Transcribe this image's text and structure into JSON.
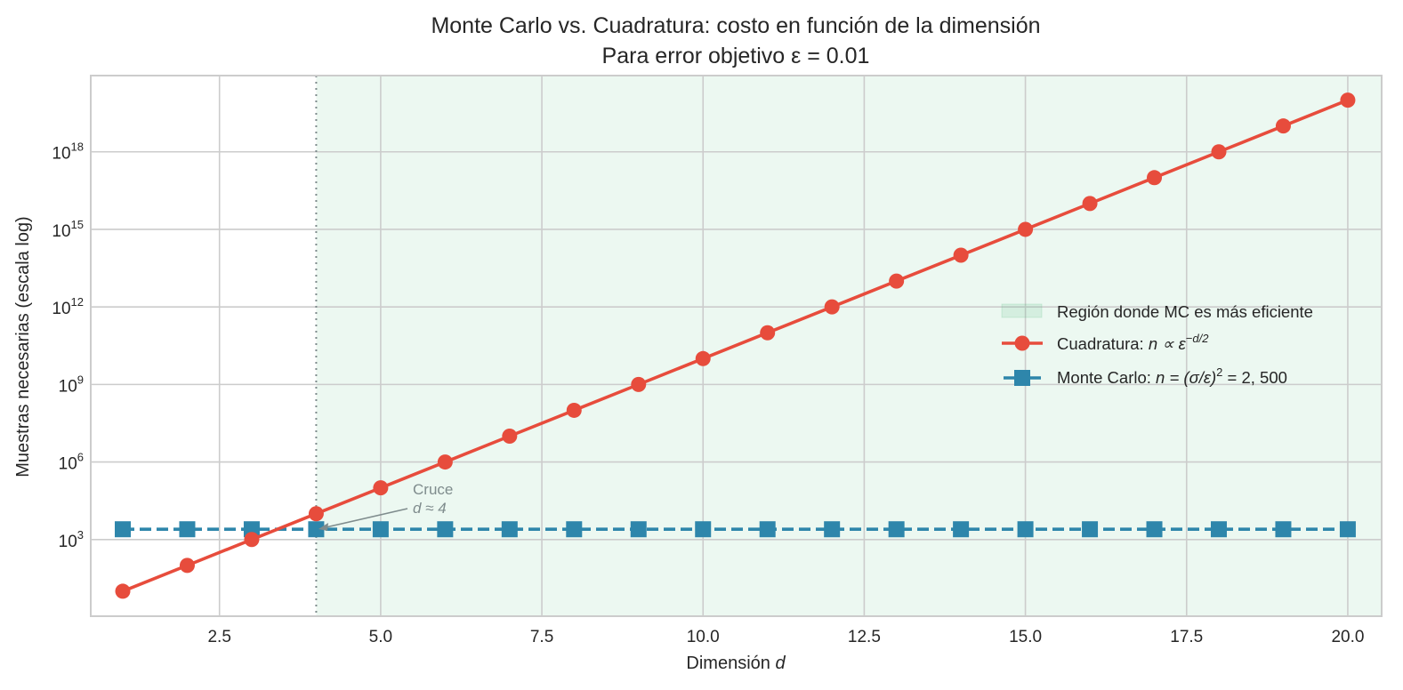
{
  "chart_data": {
    "type": "line",
    "title": "Monte Carlo vs. Cuadratura: costo en función de la dimensión",
    "subtitle": "Para error objetivo ε = 0.01",
    "xlabel": "Dimensión d",
    "ylabel": "Muestras necesarias (escala log)",
    "yscale": "log",
    "xlim": [
      0.5,
      20.5
    ],
    "ylim_log10": [
      0,
      20.95
    ],
    "grid": true,
    "x_ticks": [
      "2.5",
      "5.0",
      "7.5",
      "10.0",
      "12.5",
      "15.0",
      "17.5",
      "20.0"
    ],
    "x_tick_values": [
      2.5,
      5.0,
      7.5,
      10.0,
      12.5,
      15.0,
      17.5,
      20.0
    ],
    "y_ticks": [
      {
        "base": "10",
        "exp": "3",
        "log": 3
      },
      {
        "base": "10",
        "exp": "6",
        "log": 6
      },
      {
        "base": "10",
        "exp": "9",
        "log": 9
      },
      {
        "base": "10",
        "exp": "12",
        "log": 12
      },
      {
        "base": "10",
        "exp": "15",
        "log": 15
      },
      {
        "base": "10",
        "exp": "18",
        "log": 18
      }
    ],
    "x": [
      1,
      2,
      3,
      4,
      5,
      6,
      7,
      8,
      9,
      10,
      11,
      12,
      13,
      14,
      15,
      16,
      17,
      18,
      19,
      20
    ],
    "series": [
      {
        "name": "Cuadratura: n ∝ ε^(−d/2)",
        "color": "#e74c3c",
        "marker": "circle",
        "linestyle": "solid",
        "values": [
          10.0,
          100.0,
          1000.0,
          10000.0,
          100000.0,
          1000000.0,
          10000000.0,
          100000000.0,
          1000000000.0,
          10000000000.0,
          100000000000.0,
          1000000000000.0,
          10000000000000.0,
          100000000000000.0,
          1000000000000000.0,
          1e+16,
          1e+17,
          1e+18,
          1e+19,
          1e+20
        ]
      },
      {
        "name": "Monte Carlo: n = (σ/ε)² = 2,500",
        "color": "#2e86ab",
        "marker": "square",
        "linestyle": "dashed",
        "values": [
          2500,
          2500,
          2500,
          2500,
          2500,
          2500,
          2500,
          2500,
          2500,
          2500,
          2500,
          2500,
          2500,
          2500,
          2500,
          2500,
          2500,
          2500,
          2500,
          2500
        ]
      }
    ],
    "shaded_region": {
      "label": "Región donde MC es más eficiente",
      "x_from": 4,
      "x_to": 20.5,
      "color": "#27ae60",
      "alpha": 0.08
    },
    "vline": {
      "x": 4,
      "style": "dotted",
      "color": "#7f8c8d"
    },
    "annotation": {
      "line1": "Cruce",
      "line2": "d ≈ 4",
      "xy": [
        4,
        2500
      ],
      "text_xy": [
        5.5,
        80000
      ]
    },
    "legend": {
      "position": "center right",
      "entries": [
        {
          "label": "Región donde MC es más eficiente",
          "type": "patch"
        },
        {
          "label_prefix": "Cuadratura: ",
          "label_math": "n ∝ ε",
          "label_sup": "−d/2",
          "type": "line-circle"
        },
        {
          "label_prefix": "Monte Carlo: ",
          "label_math": "n = (σ/ε)",
          "label_sup": "2",
          "label_suffix": " = 2, 500",
          "type": "line-square"
        }
      ]
    }
  }
}
